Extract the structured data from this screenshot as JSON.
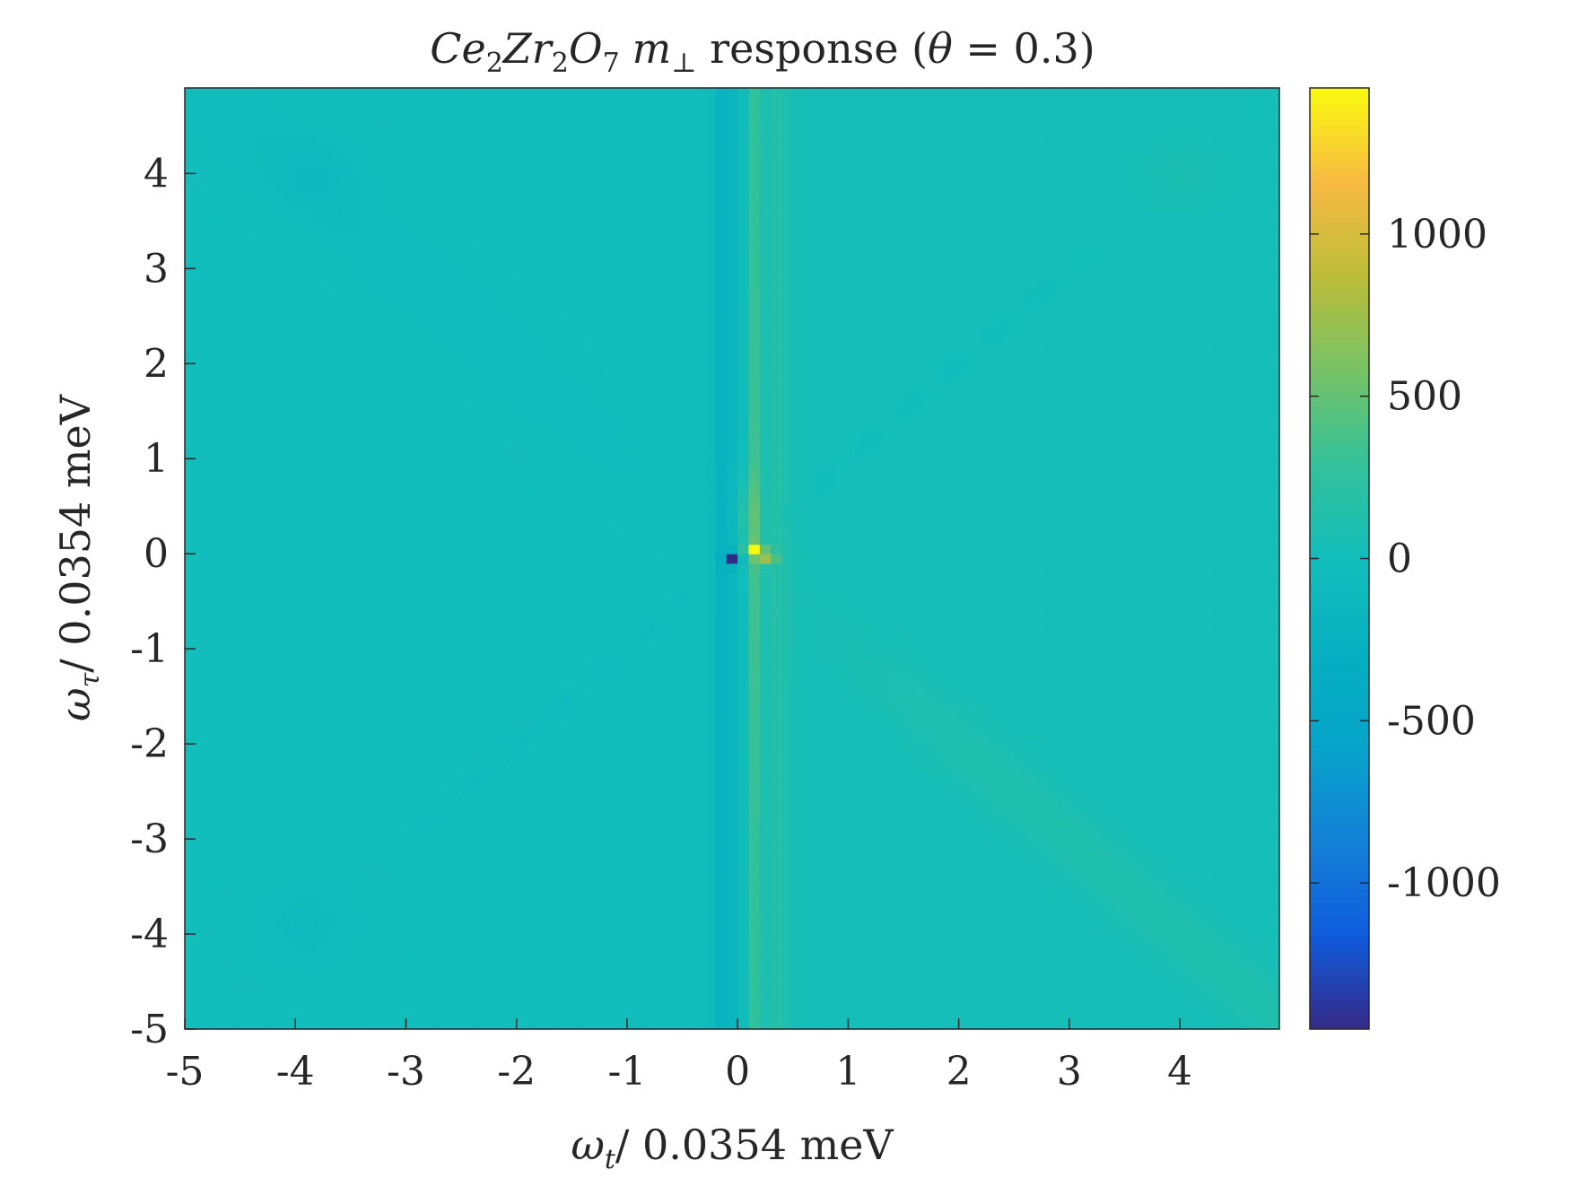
{
  "chart_data": {
    "type": "heatmap",
    "title_parts": {
      "ce": "Ce",
      "ce_sub": "2",
      "zr": "Zr",
      "zr_sub": "2",
      "o": "O",
      "o_sub": "7",
      "m": "m",
      "m_sub": "⊥",
      "rest": " response (",
      "theta": "θ",
      "eq": " = 0.3)"
    },
    "xlabel_parts": {
      "sym": "ω",
      "sub": "t",
      "rest": "/ 0.0354 meV"
    },
    "ylabel_parts": {
      "sym": "ω",
      "sub": "τ",
      "rest": "/ 0.0354 meV"
    },
    "xlim": [
      -5,
      4.9
    ],
    "ylim": [
      -5,
      4.9
    ],
    "x_ticks": [
      "-5",
      "-4",
      "-3",
      "-2",
      "-1",
      "0",
      "1",
      "2",
      "3",
      "4"
    ],
    "y_ticks": [
      "4",
      "3",
      "2",
      "1",
      "0",
      "-1",
      "-2",
      "-3",
      "-4",
      "-5"
    ],
    "colorbar": {
      "clim": [
        -1450,
        1450
      ],
      "ticks": [
        "1000",
        "500",
        "0",
        "-500",
        "-1000"
      ],
      "colormap": "parula"
    },
    "grid": false,
    "features": [
      {
        "description_values": "minimum near origin",
        "x": -0.05,
        "y": -0.05,
        "value": -1450
      },
      {
        "description_values": "maximum near origin",
        "x": 0.15,
        "y": 0.05,
        "value": 1450
      }
    ]
  }
}
